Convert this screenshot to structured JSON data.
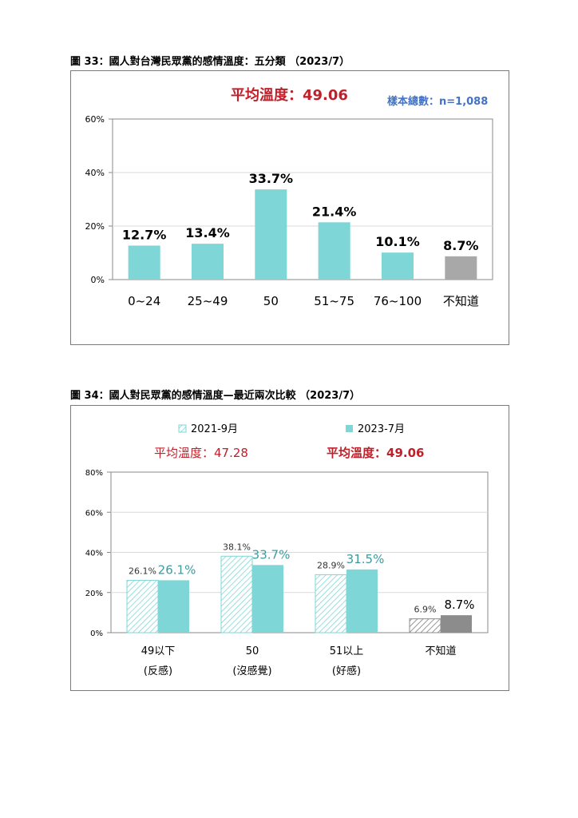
{
  "colors": {
    "teal": "#7ed6d6",
    "teal_text": "#3f9a9e",
    "gray_bar": "#a8a8a8",
    "dark_gray_bar": "#8c8c8c",
    "red": "#c0202a",
    "blue": "#4472c4"
  },
  "chart_data": [
    {
      "type": "bar",
      "title": "圖 33：國人對台灣民眾黨的感情溫度：五分類 （2023/7）",
      "average_label": "平均溫度：49.06",
      "sample_label": "樣本總數：n=1,088",
      "categories": [
        "0~24",
        "25~49",
        "50",
        "51~75",
        "76~100",
        "不知道"
      ],
      "values": [
        12.7,
        13.4,
        33.7,
        21.4,
        10.1,
        8.7
      ],
      "value_labels": [
        "12.7%",
        "13.4%",
        "33.7%",
        "21.4%",
        "10.1%",
        "8.7%"
      ],
      "ylim": [
        0,
        60
      ],
      "yticks": [
        "0%",
        "20%",
        "40%",
        "60%"
      ],
      "grid": true,
      "xlabel": "",
      "ylabel": ""
    },
    {
      "type": "bar",
      "title": "圖 34：國人對民眾黨的感情溫度—最近兩次比較 （2023/7）",
      "categories": [
        "49以下",
        "50",
        "51以上",
        "不知道"
      ],
      "category_sublabels": [
        "(反感)",
        "(沒感覺)",
        "(好感)",
        ""
      ],
      "series": [
        {
          "name": "2021-9月",
          "values": [
            26.1,
            38.1,
            28.9,
            6.9
          ],
          "value_labels": [
            "26.1%",
            "38.1%",
            "28.9%",
            "6.9%"
          ],
          "average_label": "平均溫度：47.28"
        },
        {
          "name": "2023-7月",
          "values": [
            26.1,
            33.7,
            31.5,
            8.7
          ],
          "value_labels": [
            "26.1%",
            "33.7%",
            "31.5%",
            "8.7%"
          ],
          "average_label": "平均溫度：49.06"
        }
      ],
      "ylim": [
        0,
        80
      ],
      "yticks": [
        "0%",
        "20%",
        "40%",
        "60%",
        "80%"
      ],
      "grid": true,
      "legend_placement": "top-center",
      "xlabel": "",
      "ylabel": ""
    }
  ]
}
